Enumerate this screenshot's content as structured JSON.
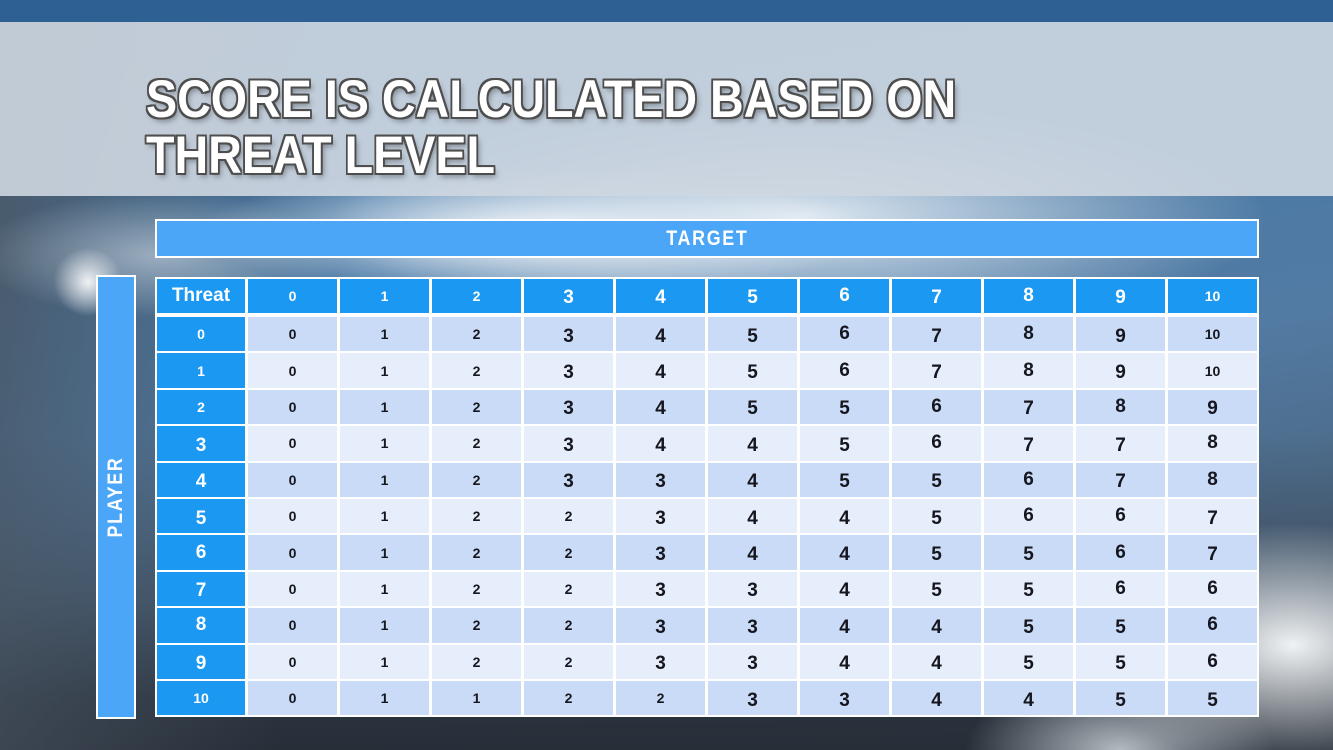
{
  "title": {
    "line1": "SCORE IS CALCULATED BASED ON",
    "line2": "THREAT LEVEL"
  },
  "colors": {
    "top_strip": "#2e6093",
    "title_band": "#ced7e1",
    "axis_bar_blue": "#4ba6f7",
    "header_blue": "#1b98f2",
    "row_shade_dark": "#c9dbf6",
    "row_shade_light": "#e7eefb",
    "cell_text": "#16161f",
    "header_text": "#ffffff"
  },
  "chart_data": {
    "type": "table",
    "title": "Score by player threat level vs target threat level",
    "column_axis_label": "TARGET",
    "row_axis_label": "PLAYER",
    "corner_label": "Threat",
    "column_headers": [
      "0",
      "1",
      "2",
      "3",
      "4",
      "5",
      "6",
      "7",
      "8",
      "9",
      "10"
    ],
    "row_headers": [
      "0",
      "1",
      "2",
      "3",
      "4",
      "5",
      "6",
      "7",
      "8",
      "9",
      "10"
    ],
    "rows": [
      [
        0,
        1,
        2,
        3,
        4,
        5,
        6,
        7,
        8,
        9,
        10
      ],
      [
        0,
        1,
        2,
        3,
        4,
        5,
        6,
        7,
        8,
        9,
        10
      ],
      [
        0,
        1,
        2,
        3,
        4,
        5,
        5,
        6,
        7,
        8,
        9
      ],
      [
        0,
        1,
        2,
        3,
        4,
        4,
        5,
        6,
        7,
        7,
        8
      ],
      [
        0,
        1,
        2,
        3,
        3,
        4,
        5,
        5,
        6,
        7,
        8
      ],
      [
        0,
        1,
        2,
        2,
        3,
        4,
        4,
        5,
        6,
        6,
        7
      ],
      [
        0,
        1,
        2,
        2,
        3,
        4,
        4,
        5,
        5,
        6,
        7
      ],
      [
        0,
        1,
        2,
        2,
        3,
        3,
        4,
        5,
        5,
        6,
        6
      ],
      [
        0,
        1,
        2,
        2,
        3,
        3,
        4,
        4,
        5,
        5,
        6
      ],
      [
        0,
        1,
        2,
        2,
        3,
        3,
        4,
        4,
        5,
        5,
        6
      ],
      [
        0,
        1,
        1,
        2,
        2,
        3,
        3,
        4,
        4,
        5,
        5
      ]
    ]
  }
}
